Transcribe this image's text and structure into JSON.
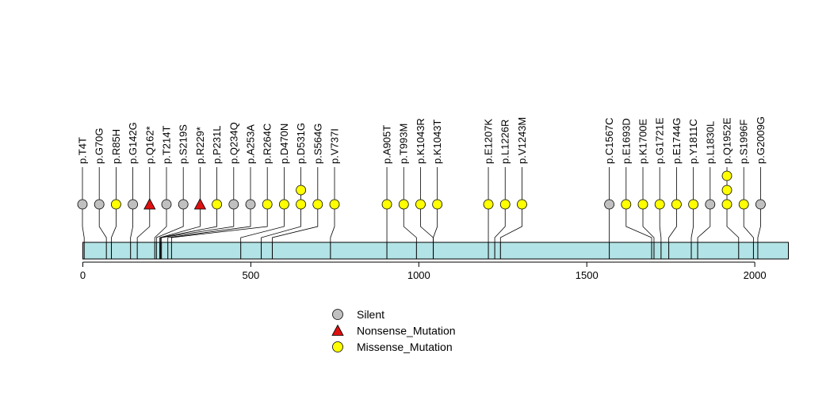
{
  "chart_data": {
    "type": "lollipop",
    "x_range": [
      0,
      2100
    ],
    "x_ticks": [
      0,
      500,
      1000,
      1500,
      2000
    ],
    "protein_bar_color": "#B2E3E6",
    "category_colors": {
      "Silent": "#C0C0C0",
      "Nonsense_Mutation": "#DD1111",
      "Missense_Mutation": "#FFFF00"
    },
    "legend": [
      {
        "label": "Silent",
        "shape": "circle",
        "color": "#C0C0C0"
      },
      {
        "label": "Nonsense_Mutation",
        "shape": "triangle",
        "color": "#DD1111"
      },
      {
        "label": "Missense_Mutation",
        "shape": "circle",
        "color": "#FFFF00"
      }
    ],
    "mutations": [
      {
        "label": "p.T4T",
        "position": 4,
        "type": "Silent",
        "count": 1
      },
      {
        "label": "p.G70G",
        "position": 70,
        "type": "Silent",
        "count": 1
      },
      {
        "label": "p.R85H",
        "position": 85,
        "type": "Missense_Mutation",
        "count": 1
      },
      {
        "label": "p.G142G",
        "position": 142,
        "type": "Silent",
        "count": 1
      },
      {
        "label": "p.Q162*",
        "position": 162,
        "type": "Nonsense_Mutation",
        "count": 1
      },
      {
        "label": "p.T214T",
        "position": 214,
        "type": "Silent",
        "count": 1
      },
      {
        "label": "p.S219S",
        "position": 219,
        "type": "Silent",
        "count": 1
      },
      {
        "label": "p.R229*",
        "position": 229,
        "type": "Nonsense_Mutation",
        "count": 1
      },
      {
        "label": "p.P231L",
        "position": 231,
        "type": "Missense_Mutation",
        "count": 1
      },
      {
        "label": "p.Q234Q",
        "position": 234,
        "type": "Silent",
        "count": 1
      },
      {
        "label": "p.A253A",
        "position": 253,
        "type": "Silent",
        "count": 1
      },
      {
        "label": "p.R264C",
        "position": 264,
        "type": "Missense_Mutation",
        "count": 1
      },
      {
        "label": "p.D470N",
        "position": 470,
        "type": "Missense_Mutation",
        "count": 1
      },
      {
        "label": "p.D531G",
        "position": 531,
        "type": "Missense_Mutation",
        "count": 2
      },
      {
        "label": "p.S564G",
        "position": 564,
        "type": "Missense_Mutation",
        "count": 1
      },
      {
        "label": "p.V737I",
        "position": 737,
        "type": "Missense_Mutation",
        "count": 1
      },
      {
        "label": "p.A905T",
        "position": 905,
        "type": "Missense_Mutation",
        "count": 1
      },
      {
        "label": "p.T993M",
        "position": 993,
        "type": "Missense_Mutation",
        "count": 1
      },
      {
        "label": "p.K1043R",
        "position": 1043,
        "type": "Missense_Mutation",
        "count": 1
      },
      {
        "label": "p.K1043T",
        "position": 1043,
        "type": "Missense_Mutation",
        "count": 1
      },
      {
        "label": "p.E1207K",
        "position": 1207,
        "type": "Missense_Mutation",
        "count": 1
      },
      {
        "label": "p.L1226R",
        "position": 1226,
        "type": "Missense_Mutation",
        "count": 1
      },
      {
        "label": "p.V1243M",
        "position": 1243,
        "type": "Missense_Mutation",
        "count": 1
      },
      {
        "label": "p.C1567C",
        "position": 1567,
        "type": "Silent",
        "count": 1
      },
      {
        "label": "p.E1693D",
        "position": 1693,
        "type": "Missense_Mutation",
        "count": 1
      },
      {
        "label": "p.K1700E",
        "position": 1700,
        "type": "Missense_Mutation",
        "count": 1
      },
      {
        "label": "p.G1721E",
        "position": 1721,
        "type": "Missense_Mutation",
        "count": 1
      },
      {
        "label": "p.E1744G",
        "position": 1744,
        "type": "Missense_Mutation",
        "count": 1
      },
      {
        "label": "p.Y1811C",
        "position": 1811,
        "type": "Missense_Mutation",
        "count": 1
      },
      {
        "label": "p.L1830L",
        "position": 1830,
        "type": "Silent",
        "count": 1
      },
      {
        "label": "p.Q1952E",
        "position": 1952,
        "type": "Missense_Mutation",
        "count": 3
      },
      {
        "label": "p.S1996F",
        "position": 1996,
        "type": "Missense_Mutation",
        "count": 1
      },
      {
        "label": "p.G2009G",
        "position": 2009,
        "type": "Silent",
        "count": 1
      }
    ]
  }
}
